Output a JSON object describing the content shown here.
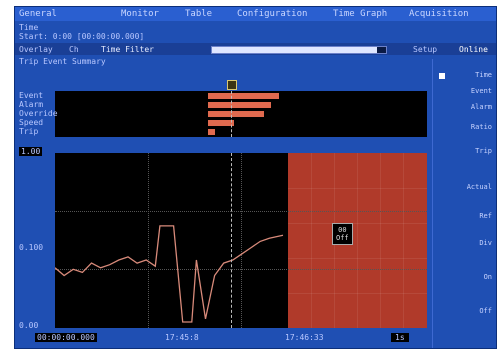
{
  "menu": {
    "items": [
      "General",
      "Monitor",
      "Table",
      "Configuration",
      "Time Graph",
      "Acquisition"
    ]
  },
  "header": {
    "line1": "Time",
    "line2": "Start: 0:00  [00:00:00.000]"
  },
  "toolbar": {
    "left_label": "Overlay",
    "ch_label": "Ch",
    "filter_label": "Time Filter",
    "slider_fraction": 0.95,
    "right_label": "Setup",
    "status_tag": "Online"
  },
  "subtitle": "Trip  Event Summary",
  "event_rows": [
    "Event",
    "Alarm",
    "Override",
    "Speed",
    "Trip"
  ],
  "event_bars": [
    {
      "row": 0,
      "start": 0.41,
      "end": 0.6
    },
    {
      "row": 1,
      "start": 0.41,
      "end": 0.58
    },
    {
      "row": 2,
      "start": 0.41,
      "end": 0.56
    },
    {
      "row": 3,
      "start": 0.41,
      "end": 0.48
    },
    {
      "row": 4,
      "start": 0.41,
      "end": 0.43
    }
  ],
  "left_axis": {
    "top_label": "1.00",
    "mid_label": "0.100",
    "bottom_label": "0.00"
  },
  "chart_data": {
    "type": "line",
    "series": [
      {
        "name": "",
        "color": "#d88a7a",
        "x": [
          0.0,
          0.04,
          0.08,
          0.12,
          0.16,
          0.2,
          0.24,
          0.28,
          0.32,
          0.36,
          0.4,
          0.44,
          0.46,
          0.48,
          0.52,
          0.56,
          0.6,
          0.62,
          0.66,
          0.7,
          0.74,
          0.78,
          0.82,
          0.86,
          0.9,
          0.94,
          1.0
        ],
        "y": [
          0.35,
          0.3,
          0.34,
          0.32,
          0.38,
          0.35,
          0.37,
          0.4,
          0.42,
          0.38,
          0.4,
          0.36,
          0.62,
          0.62,
          0.62,
          0.0,
          0.0,
          0.4,
          0.02,
          0.3,
          0.38,
          0.4,
          0.44,
          0.48,
          0.52,
          0.54,
          0.56
        ]
      }
    ],
    "shaded_region": {
      "start": 0.63,
      "end": 1.0,
      "color": "#b03a2a"
    }
  },
  "tooltip": {
    "line1": "00",
    "line2": "Off"
  },
  "bottom": {
    "left_label": "00:00:00.000",
    "time1": "17:45:8",
    "time2": "17:46:33",
    "right_label": "1s"
  },
  "sidebar": {
    "items": [
      "Time",
      "Event",
      "Alarm",
      "Ratio",
      "Trip",
      "Actual",
      "Ref",
      "Div",
      "On",
      "Off"
    ]
  }
}
